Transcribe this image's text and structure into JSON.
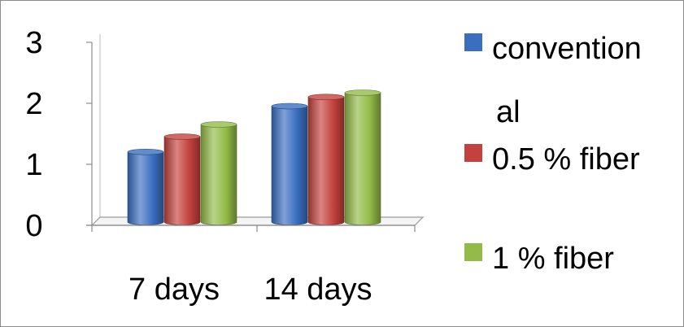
{
  "chart_data": {
    "type": "bar",
    "categories": [
      "7 days",
      "14 days"
    ],
    "series": [
      {
        "name": "conventional",
        "legend_lines": [
          "convention",
          "al"
        ],
        "color": "#3a6fc0",
        "values": [
          1.15,
          1.9
        ]
      },
      {
        "name": "0.5 % fiber",
        "legend_lines": [
          "0.5 % fiber"
        ],
        "color": "#c4423d",
        "values": [
          1.4,
          2.05
        ]
      },
      {
        "name": "1 % fiber",
        "legend_lines": [
          "1 % fiber"
        ],
        "color": "#92bb47",
        "values": [
          1.6,
          2.12
        ]
      }
    ],
    "y_ticks": [
      "0",
      "1",
      "2",
      "3"
    ],
    "ylim": [
      0,
      3
    ],
    "grid": false,
    "legend_position": "right",
    "style": "3d-cylinder"
  }
}
